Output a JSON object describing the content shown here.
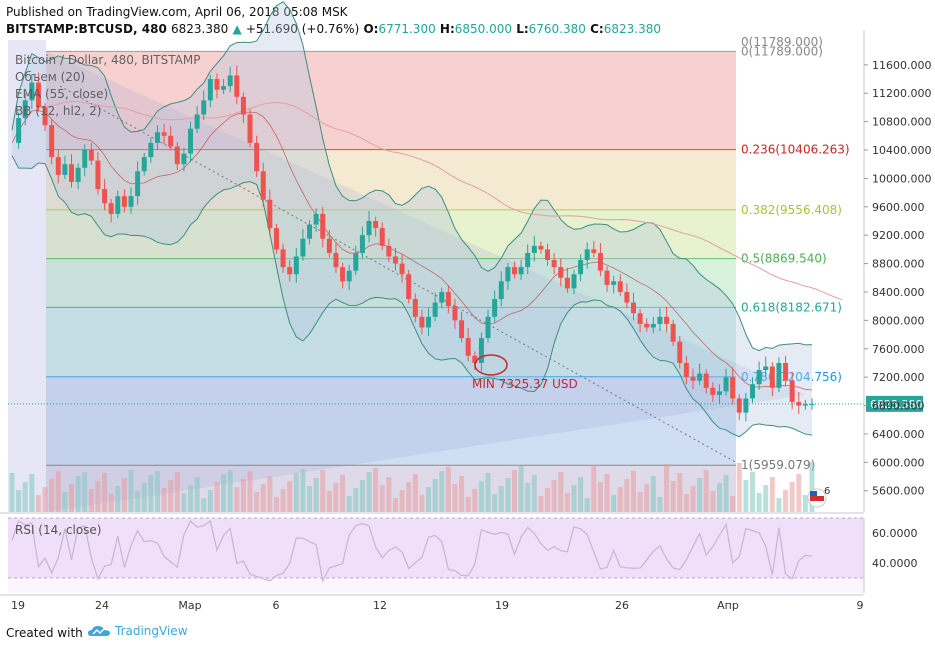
{
  "header": {
    "published": "Published on TradingView.com, April 06, 2018 05:08 MSK",
    "symbol": "BITSTAMP:BTCUSD, 480",
    "last": "6823.380",
    "change_arrow": "▲",
    "change": "+51.690 (+0.76%)",
    "o_label": "O:",
    "o_value": "6771.300",
    "h_label": "H:",
    "h_value": "6850.000",
    "l_label": "L:",
    "l_value": "6760.380",
    "c_label": "C:",
    "c_value": "6823.380"
  },
  "legend": [
    "Bitcoin / Dollar, 480, BITSTAMP",
    "Объем (20)",
    "EMA (55, close)",
    "BB (12, hl2, 2)"
  ],
  "rsi_label": "RSI (14, close)",
  "annotation": "MIN 7325.37 USD",
  "price_tag": "6823.380",
  "pin_number": "6",
  "footer": {
    "created_with": "Created with",
    "brand": "TradingView"
  },
  "colors": {
    "up": "#26a69a",
    "down": "#ef5350",
    "annotation": "#c62828",
    "fib_0236": "#c62828",
    "fib_0382": "#a5c535",
    "fib_05": "#4caf50",
    "fib_0618": "#26a69a",
    "fib_0786": "#2196f3",
    "fib_1": "#757575"
  },
  "chart_data": {
    "type": "candlestick",
    "y_axis_ticks": [
      "11600.000",
      "11200.000",
      "10800.000",
      "10400.000",
      "10000.000",
      "9600.000",
      "9200.000",
      "8800.000",
      "8400.000",
      "8000.000",
      "7600.000",
      "7200.000",
      "6800.000",
      "6400.000",
      "6000.000",
      "5600.000"
    ],
    "ylim": [
      5300,
      11950
    ],
    "x_axis_ticks": [
      "19",
      "24",
      "Мар",
      "6",
      "12",
      "19",
      "26",
      "Апр",
      "9"
    ],
    "fib_levels": [
      {
        "ratio": "0",
        "label": "0(11789.000)",
        "value": 11789.0
      },
      {
        "ratio": "0.236",
        "label": "0.236(10406.263)",
        "value": 10406.263
      },
      {
        "ratio": "0.382",
        "label": "0.382(9556.408)",
        "value": 9556.408
      },
      {
        "ratio": "0.5",
        "label": "0.5(8869.540)",
        "value": 8869.54
      },
      {
        "ratio": "0.618",
        "label": "0.618(8182.671)",
        "value": 8182.671
      },
      {
        "ratio": "0.786",
        "label": "0.786(7204.756)",
        "value": 7204.756
      },
      {
        "ratio": "1",
        "label": "1(5959.079)",
        "value": 5959.079
      }
    ],
    "close_series": [
      10500,
      10850,
      11100,
      11350,
      11000,
      10750,
      10300,
      10050,
      10200,
      9950,
      10150,
      10400,
      10250,
      9850,
      9650,
      9500,
      9750,
      9600,
      9750,
      10100,
      10300,
      10500,
      10650,
      10600,
      10450,
      10200,
      10350,
      10700,
      10900,
      11100,
      11400,
      11250,
      11300,
      11450,
      11150,
      10900,
      10500,
      10100,
      9700,
      9300,
      9000,
      8750,
      8650,
      8900,
      9150,
      9350,
      9500,
      9150,
      8950,
      8750,
      8550,
      8700,
      8950,
      9200,
      9400,
      9300,
      9050,
      8900,
      8800,
      8650,
      8300,
      8050,
      7900,
      8050,
      8250,
      8400,
      8200,
      8000,
      7750,
      7500,
      7400,
      7750,
      8050,
      8300,
      8550,
      8750,
      8650,
      8750,
      8950,
      9050,
      9000,
      8850,
      8750,
      8600,
      8450,
      8650,
      8850,
      9000,
      8950,
      8700,
      8500,
      8550,
      8400,
      8250,
      8100,
      7950,
      7900,
      7950,
      8050,
      7950,
      7700,
      7400,
      7200,
      7150,
      7250,
      7050,
      6950,
      7000,
      7200,
      6900,
      6700,
      6900,
      7100,
      7300,
      7350,
      7050,
      7400,
      7150,
      6850,
      6800,
      6820,
      6823
    ]
  }
}
